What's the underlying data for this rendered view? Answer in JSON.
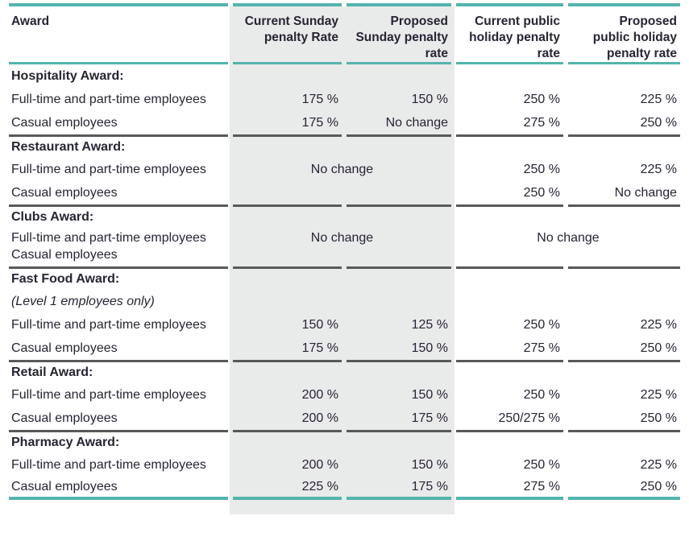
{
  "colors": {
    "accent_teal": "#54b4ae",
    "divider_gray": "#58595b",
    "shade": "#e9eaea",
    "text": "#282434"
  },
  "table": {
    "columns": [
      {
        "label": "Award"
      },
      {
        "label": "Current Sunday\npenalty Rate"
      },
      {
        "label": "Proposed\nSunday penalty\nrate"
      },
      {
        "label": "Current public\nholiday penalty\nrate"
      },
      {
        "label": "Proposed\npublic holiday\npenalty rate"
      }
    ],
    "sections": [
      {
        "title": "Hospitality Award:",
        "rows": [
          {
            "label": "Full-time and part-time employees",
            "sunday_current": "175 %",
            "sunday_proposed": "150 %",
            "ph_current": "250 %",
            "ph_proposed": "225 %"
          },
          {
            "label": "Casual employees",
            "sunday_current": "175 %",
            "sunday_proposed": "No change",
            "ph_current": "275 %",
            "ph_proposed": "250 %"
          }
        ]
      },
      {
        "title": "Restaurant Award:",
        "rows": [
          {
            "label": "Full-time and part-time employees",
            "sunday_combined": "No change",
            "ph_current": "250 %",
            "ph_proposed": "225 %"
          },
          {
            "label": "Casual employees",
            "sunday_combined": "",
            "ph_current": "250 %",
            "ph_proposed": "No change"
          }
        ]
      },
      {
        "title": "Clubs Award:",
        "labels": [
          "Full-time and part-time employees",
          "Casual employees"
        ],
        "sunday_combined": "No change",
        "public_holiday_combined": "No change"
      },
      {
        "title": "Fast Food Award:",
        "note": "(Level 1 employees only)",
        "rows": [
          {
            "label": "Full-time and part-time employees",
            "sunday_current": "150 %",
            "sunday_proposed": "125 %",
            "ph_current": "250 %",
            "ph_proposed": "225 %"
          },
          {
            "label": "Casual employees",
            "sunday_current": "175 %",
            "sunday_proposed": "150 %",
            "ph_current": "275 %",
            "ph_proposed": "250 %"
          }
        ]
      },
      {
        "title": "Retail Award:",
        "rows": [
          {
            "label": "Full-time and part-time employees",
            "sunday_current": "200 %",
            "sunday_proposed": "150 %",
            "ph_current": "250 %",
            "ph_proposed": "225 %"
          },
          {
            "label": "Casual employees",
            "sunday_current": "200 %",
            "sunday_proposed": "175 %",
            "ph_current": "250/275 %",
            "ph_proposed": "250 %"
          }
        ]
      },
      {
        "title": "Pharmacy Award:",
        "rows": [
          {
            "label": "Full-time and part-time employees",
            "sunday_current": "200 %",
            "sunday_proposed": "150 %",
            "ph_current": "250 %",
            "ph_proposed": "225 %"
          },
          {
            "label": "Casual employees",
            "sunday_current": "225 %",
            "sunday_proposed": "175 %",
            "ph_current": "275 %",
            "ph_proposed": "250 %"
          }
        ]
      }
    ]
  }
}
